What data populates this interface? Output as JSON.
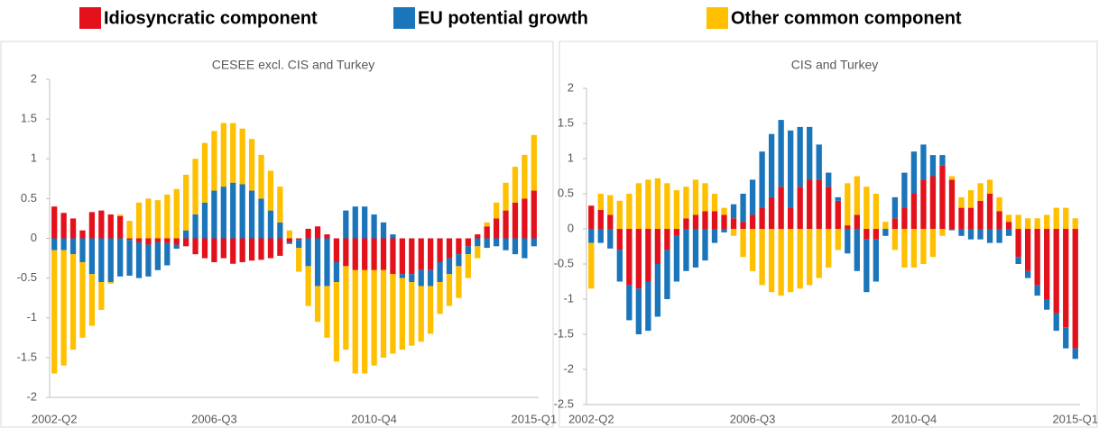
{
  "legend": {
    "position": "top",
    "items": [
      {
        "name": "Idiosyncratic component",
        "color": "#e3111b"
      },
      {
        "name": "EU potential growth",
        "color": "#1b75bb"
      },
      {
        "name": "Other common component",
        "color": "#ffc000"
      }
    ]
  },
  "chart_data": [
    {
      "type": "bar",
      "stacked": true,
      "title": "CESEE excl. CIS and Turkey",
      "categories": [
        "2002-Q2",
        null,
        null,
        null,
        null,
        null,
        null,
        null,
        null,
        null,
        null,
        null,
        null,
        null,
        null,
        null,
        null,
        "2006-Q3",
        null,
        null,
        null,
        null,
        null,
        null,
        null,
        null,
        null,
        null,
        null,
        null,
        null,
        null,
        null,
        null,
        "2010-Q4",
        null,
        null,
        null,
        null,
        null,
        null,
        null,
        null,
        null,
        null,
        null,
        null,
        null,
        null,
        null,
        null,
        "2015-Q1"
      ],
      "series": [
        {
          "color": "#e3111b",
          "values": [
            0.4,
            0.32,
            0.25,
            0.1,
            0.33,
            0.35,
            0.3,
            0.28,
            -0.02,
            -0.05,
            -0.08,
            -0.05,
            -0.06,
            -0.08,
            -0.1,
            -0.2,
            -0.25,
            -0.3,
            -0.25,
            -0.32,
            -0.3,
            -0.28,
            -0.27,
            -0.25,
            -0.22,
            -0.05,
            -0.02,
            0.12,
            0.15,
            0.05,
            -0.3,
            -0.35,
            -0.4,
            -0.4,
            -0.4,
            -0.4,
            -0.45,
            -0.45,
            -0.45,
            -0.4,
            -0.4,
            -0.3,
            -0.25,
            -0.2,
            -0.1,
            0.05,
            0.15,
            0.25,
            0.35,
            0.45,
            0.5,
            0.6
          ]
        },
        {
          "color": "#1b75bb",
          "values": [
            -0.15,
            -0.15,
            -0.2,
            -0.3,
            -0.45,
            -0.55,
            -0.55,
            -0.48,
            -0.45,
            -0.45,
            -0.4,
            -0.35,
            -0.28,
            -0.05,
            0.1,
            0.3,
            0.45,
            0.6,
            0.65,
            0.7,
            0.68,
            0.6,
            0.5,
            0.35,
            0.2,
            -0.02,
            -0.1,
            -0.35,
            -0.6,
            -0.6,
            -0.25,
            0.35,
            0.4,
            0.4,
            0.3,
            0.2,
            0.05,
            -0.05,
            -0.1,
            -0.2,
            -0.2,
            -0.25,
            -0.2,
            -0.15,
            -0.1,
            -0.1,
            -0.12,
            -0.1,
            -0.15,
            -0.2,
            -0.25,
            -0.1
          ]
        },
        {
          "color": "#ffc000",
          "values": [
            -1.55,
            -1.45,
            -1.2,
            -0.95,
            -0.65,
            -0.35,
            -0.02,
            0.02,
            0.22,
            0.45,
            0.5,
            0.48,
            0.55,
            0.62,
            0.7,
            0.7,
            0.75,
            0.75,
            0.8,
            0.75,
            0.7,
            0.65,
            0.55,
            0.5,
            0.45,
            0.1,
            -0.3,
            -0.5,
            -0.45,
            -0.65,
            -1.0,
            -1.05,
            -1.3,
            -1.3,
            -1.2,
            -1.1,
            -1.0,
            -0.9,
            -0.8,
            -0.7,
            -0.6,
            -0.4,
            -0.4,
            -0.4,
            -0.3,
            -0.15,
            0.05,
            0.2,
            0.35,
            0.45,
            0.55,
            0.7
          ]
        }
      ],
      "ylim": [
        -2,
        2
      ],
      "yticks": [
        -2,
        -1.5,
        -1,
        -0.5,
        0,
        0.5,
        1,
        1.5,
        2
      ]
    },
    {
      "type": "bar",
      "stacked": true,
      "title": "CIS and Turkey",
      "categories": [
        "2002-Q2",
        null,
        null,
        null,
        null,
        null,
        null,
        null,
        null,
        null,
        null,
        null,
        null,
        null,
        null,
        null,
        null,
        "2006-Q3",
        null,
        null,
        null,
        null,
        null,
        null,
        null,
        null,
        null,
        null,
        null,
        null,
        null,
        null,
        null,
        null,
        "2010-Q4",
        null,
        null,
        null,
        null,
        null,
        null,
        null,
        null,
        null,
        null,
        null,
        null,
        null,
        null,
        null,
        null,
        "2015-Q1"
      ],
      "series": [
        {
          "color": "#e3111b",
          "values": [
            0.33,
            0.27,
            0.2,
            -0.3,
            -0.8,
            -0.85,
            -0.75,
            -0.5,
            -0.3,
            -0.1,
            0.15,
            0.2,
            0.25,
            0.25,
            0.2,
            0.15,
            0.1,
            0.2,
            0.3,
            0.45,
            0.6,
            0.3,
            0.6,
            0.7,
            0.7,
            0.6,
            0.4,
            0.05,
            0.2,
            -0.15,
            -0.15,
            0.0,
            0.15,
            0.3,
            0.5,
            0.7,
            0.75,
            0.9,
            0.7,
            0.3,
            0.3,
            0.4,
            0.5,
            0.25,
            0.1,
            -0.4,
            -0.6,
            -0.8,
            -1.0,
            -1.2,
            -1.4,
            -1.7
          ]
        },
        {
          "color": "#1b75bb",
          "values": [
            -0.2,
            -0.2,
            -0.28,
            -0.45,
            -0.5,
            -0.65,
            -0.7,
            -0.75,
            -0.7,
            -0.65,
            -0.6,
            -0.55,
            -0.45,
            -0.2,
            -0.05,
            0.2,
            0.4,
            0.5,
            0.8,
            0.9,
            0.95,
            1.1,
            0.85,
            0.75,
            0.5,
            0.2,
            0.05,
            -0.35,
            -0.6,
            -0.75,
            -0.6,
            -0.1,
            0.3,
            0.5,
            0.6,
            0.5,
            0.3,
            0.15,
            -0.02,
            -0.1,
            -0.15,
            -0.15,
            -0.2,
            -0.2,
            -0.1,
            -0.1,
            -0.1,
            -0.15,
            -0.15,
            -0.25,
            -0.3,
            -0.15
          ]
        },
        {
          "color": "#ffc000",
          "values": [
            -0.65,
            0.23,
            0.28,
            0.4,
            0.5,
            0.65,
            0.7,
            0.72,
            0.65,
            0.55,
            0.45,
            0.5,
            0.4,
            0.25,
            0.1,
            -0.1,
            -0.4,
            -0.6,
            -0.8,
            -0.9,
            -0.95,
            -0.9,
            -0.85,
            -0.8,
            -0.7,
            -0.55,
            -0.3,
            0.6,
            0.55,
            0.6,
            0.5,
            0.1,
            -0.3,
            -0.55,
            -0.55,
            -0.5,
            -0.4,
            -0.1,
            0.05,
            0.15,
            0.25,
            0.25,
            0.2,
            0.2,
            0.1,
            0.2,
            0.15,
            0.15,
            0.2,
            0.3,
            0.3,
            0.15
          ]
        }
      ],
      "ylim": [
        -2.5,
        2
      ],
      "yticks": [
        -2.5,
        -2,
        -1.5,
        -1,
        -0.5,
        0,
        0.5,
        1,
        1.5,
        2
      ]
    }
  ]
}
